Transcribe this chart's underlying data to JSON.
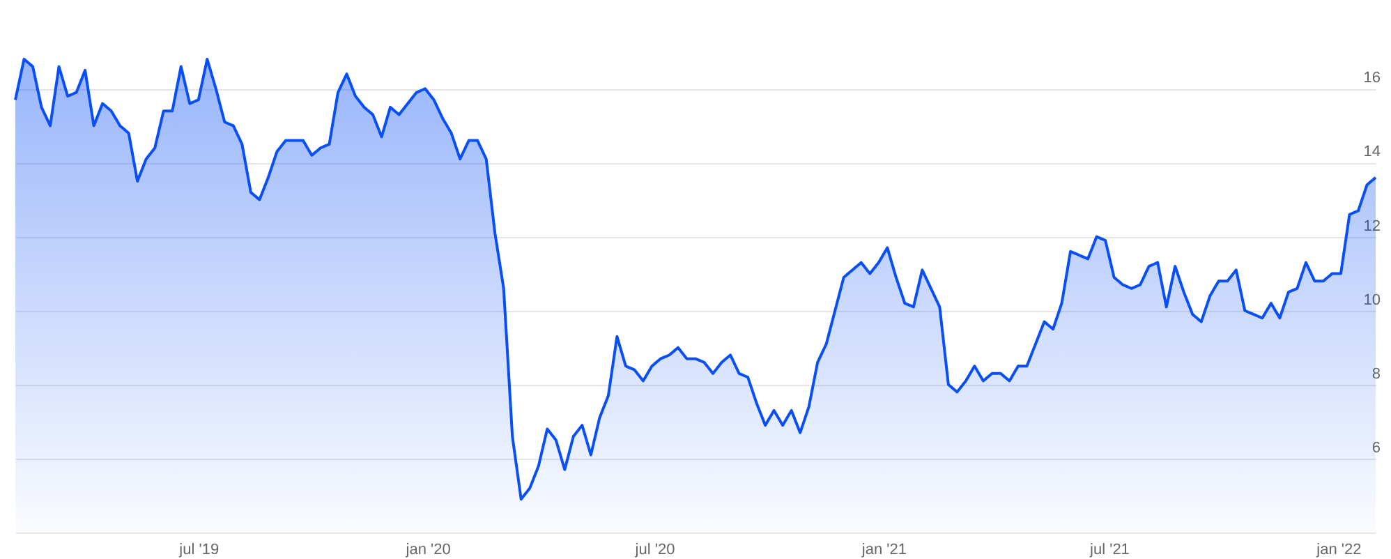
{
  "chart_data": {
    "type": "area",
    "x": [
      "2019-02-04",
      "2019-02-11",
      "2019-02-18",
      "2019-02-25",
      "2019-03-04",
      "2019-03-11",
      "2019-03-18",
      "2019-03-25",
      "2019-04-01",
      "2019-04-08",
      "2019-04-15",
      "2019-04-22",
      "2019-04-29",
      "2019-05-06",
      "2019-05-13",
      "2019-05-20",
      "2019-05-27",
      "2019-06-03",
      "2019-06-10",
      "2019-06-17",
      "2019-06-24",
      "2019-07-01",
      "2019-07-08",
      "2019-07-15",
      "2019-07-22",
      "2019-07-29",
      "2019-08-05",
      "2019-08-12",
      "2019-08-19",
      "2019-08-26",
      "2019-09-02",
      "2019-09-09",
      "2019-09-16",
      "2019-09-23",
      "2019-09-30",
      "2019-10-07",
      "2019-10-14",
      "2019-10-21",
      "2019-10-28",
      "2019-11-04",
      "2019-11-11",
      "2019-11-18",
      "2019-11-25",
      "2019-12-02",
      "2019-12-09",
      "2019-12-16",
      "2019-12-23",
      "2019-12-30",
      "2020-01-06",
      "2020-01-13",
      "2020-01-20",
      "2020-01-27",
      "2020-02-03",
      "2020-02-10",
      "2020-02-17",
      "2020-02-24",
      "2020-03-02",
      "2020-03-09",
      "2020-03-16",
      "2020-03-23",
      "2020-03-30",
      "2020-04-06",
      "2020-04-13",
      "2020-04-20",
      "2020-04-27",
      "2020-05-04",
      "2020-05-11",
      "2020-05-18",
      "2020-05-25",
      "2020-06-01",
      "2020-06-08",
      "2020-06-15",
      "2020-06-22",
      "2020-06-29",
      "2020-07-06",
      "2020-07-13",
      "2020-07-20",
      "2020-07-27",
      "2020-08-03",
      "2020-08-10",
      "2020-08-17",
      "2020-08-24",
      "2020-08-31",
      "2020-09-07",
      "2020-09-14",
      "2020-09-21",
      "2020-09-28",
      "2020-10-05",
      "2020-10-12",
      "2020-10-19",
      "2020-10-26",
      "2020-11-02",
      "2020-11-09",
      "2020-11-16",
      "2020-11-23",
      "2020-11-30",
      "2020-12-07",
      "2020-12-14",
      "2020-12-21",
      "2020-12-28",
      "2021-01-04",
      "2021-01-11",
      "2021-01-18",
      "2021-01-25",
      "2021-02-01",
      "2021-02-08",
      "2021-02-15",
      "2021-02-22",
      "2021-03-01",
      "2021-03-08",
      "2021-03-15",
      "2021-03-22",
      "2021-03-29",
      "2021-04-05",
      "2021-04-12",
      "2021-04-19",
      "2021-04-26",
      "2021-05-03",
      "2021-05-10",
      "2021-05-17",
      "2021-05-24",
      "2021-05-31",
      "2021-06-07",
      "2021-06-14",
      "2021-06-21",
      "2021-06-28",
      "2021-07-05",
      "2021-07-12",
      "2021-07-19",
      "2021-07-26",
      "2021-08-02",
      "2021-08-09",
      "2021-08-16",
      "2021-08-23",
      "2021-08-30",
      "2021-09-06",
      "2021-09-13",
      "2021-09-20",
      "2021-09-27",
      "2021-10-04",
      "2021-10-11",
      "2021-10-18",
      "2021-10-25",
      "2021-11-01",
      "2021-11-08",
      "2021-11-15",
      "2021-11-22",
      "2021-11-29",
      "2021-12-06",
      "2021-12-13",
      "2021-12-20",
      "2021-12-27",
      "2022-01-03",
      "2022-01-10",
      "2022-01-17",
      "2022-01-24",
      "2022-01-31"
    ],
    "series": [
      {
        "color": "#0a4ff5",
        "values": [
          15.7,
          16.8,
          16.6,
          15.5,
          15.0,
          16.6,
          15.8,
          15.9,
          16.5,
          15.0,
          15.6,
          15.4,
          15.0,
          14.8,
          13.5,
          14.1,
          14.4,
          15.4,
          15.4,
          16.6,
          15.6,
          15.7,
          16.8,
          16.0,
          15.1,
          15.0,
          14.5,
          13.2,
          13.0,
          13.6,
          14.3,
          14.6,
          14.6,
          14.6,
          14.2,
          14.4,
          14.5,
          15.9,
          16.4,
          15.8,
          15.5,
          15.3,
          14.7,
          15.5,
          15.3,
          15.6,
          15.9,
          16.0,
          15.7,
          15.2,
          14.8,
          14.1,
          14.6,
          14.6,
          14.1,
          12.1,
          10.6,
          6.6,
          4.9,
          5.2,
          5.8,
          6.8,
          6.5,
          5.7,
          6.6,
          6.9,
          6.1,
          7.1,
          7.7,
          9.3,
          8.5,
          8.4,
          8.1,
          8.5,
          8.7,
          8.8,
          9.0,
          8.7,
          8.7,
          8.6,
          8.3,
          8.6,
          8.8,
          8.3,
          8.2,
          7.5,
          6.9,
          7.3,
          6.9,
          7.3,
          6.7,
          7.4,
          8.6,
          9.1,
          10.0,
          10.9,
          11.1,
          11.3,
          11.0,
          11.3,
          11.7,
          10.9,
          10.2,
          10.1,
          11.1,
          10.6,
          10.1,
          8.0,
          7.8,
          8.1,
          8.5,
          8.1,
          8.3,
          8.3,
          8.1,
          8.5,
          8.5,
          9.1,
          9.7,
          9.5,
          10.2,
          11.6,
          11.5,
          11.4,
          12.0,
          11.9,
          10.9,
          10.7,
          10.6,
          10.7,
          11.2,
          11.3,
          10.1,
          11.2,
          10.5,
          9.9,
          9.7,
          10.4,
          10.8,
          10.8,
          11.1,
          10.0,
          9.9,
          9.8,
          10.2,
          9.8,
          10.5,
          10.6,
          11.3,
          10.8,
          10.8,
          11.0,
          11.0,
          12.6,
          12.7,
          13.4,
          13.6
        ]
      }
    ],
    "xlim": [
      "2019-02-04",
      "2022-01-31"
    ],
    "xticks": [
      {
        "value": "2019-07-01",
        "label": "jul '19"
      },
      {
        "value": "2020-01-01",
        "label": "jan '20"
      },
      {
        "value": "2020-07-01",
        "label": "jul '20"
      },
      {
        "value": "2021-01-01",
        "label": "jan '21"
      },
      {
        "value": "2021-07-01",
        "label": "jul '21"
      },
      {
        "value": "2022-01-01",
        "label": "jan '22"
      }
    ],
    "ylim": [
      4,
      18.4
    ],
    "yticks": [
      6,
      8,
      10,
      12,
      14,
      16
    ],
    "grid": "y"
  }
}
